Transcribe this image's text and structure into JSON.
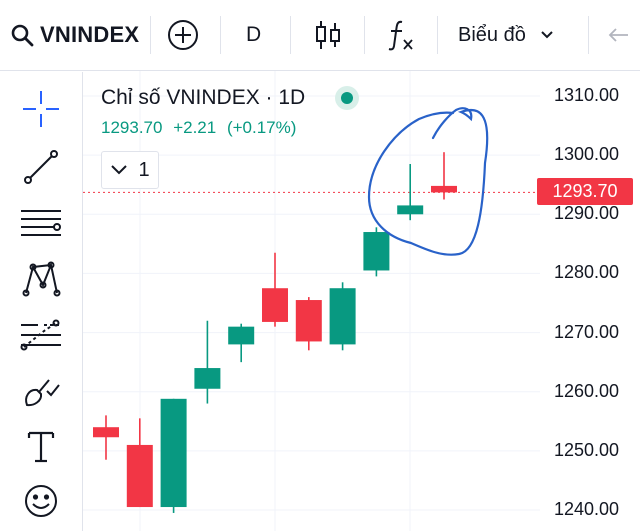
{
  "toolbar": {
    "symbol": "VNINDEX",
    "interval": "D",
    "chart_type_label": "Biểu đồ",
    "icons": [
      "search-icon",
      "plus-circle-icon",
      "candles-icon",
      "fx-icon",
      "chevron-down-icon",
      "undo-icon"
    ]
  },
  "drawing_tools": [
    "crosshair-icon",
    "trend-line-icon",
    "horizontal-lines-icon",
    "pattern-icon",
    "forecast-icon",
    "brush-icon",
    "text-icon",
    "emoji-icon"
  ],
  "legend": {
    "title": "Chỉ số VNINDEX · 1D",
    "price": "1293.70",
    "change": "+2.21",
    "change_pct": "(+0.17%)",
    "status_color": "#089981"
  },
  "collapse_toggle": {
    "count": "1"
  },
  "price_scale": {
    "ticks": [
      "1310.00",
      "1300.00",
      "1290.00",
      "1280.00",
      "1270.00",
      "1260.00",
      "1250.00",
      "1240.00"
    ],
    "last_price": "1293.70"
  },
  "colors": {
    "up": "#089981",
    "down": "#f23645",
    "annotation": "#2962c9"
  },
  "chart_data": {
    "type": "candlestick",
    "ylim": [
      1240,
      1310
    ],
    "last_price": 1293.7,
    "candles": [
      {
        "open": 1254.0,
        "high": 1256.0,
        "low": 1248.5,
        "close": 1252.3
      },
      {
        "open": 1251.0,
        "high": 1255.5,
        "low": 1240.5,
        "close": 1240.5
      },
      {
        "open": 1240.5,
        "high": 1258.8,
        "low": 1239.5,
        "close": 1258.8
      },
      {
        "open": 1260.5,
        "high": 1272.0,
        "low": 1258.0,
        "close": 1264.0
      },
      {
        "open": 1268.0,
        "high": 1271.5,
        "low": 1265.0,
        "close": 1271.0
      },
      {
        "open": 1277.5,
        "high": 1283.5,
        "low": 1271.0,
        "close": 1271.8
      },
      {
        "open": 1275.5,
        "high": 1276.0,
        "low": 1267.0,
        "close": 1268.5
      },
      {
        "open": 1268.0,
        "high": 1278.5,
        "low": 1267.0,
        "close": 1277.5
      },
      {
        "open": 1280.5,
        "high": 1287.8,
        "low": 1279.5,
        "close": 1287.0
      },
      {
        "open": 1290.0,
        "high": 1298.5,
        "low": 1289.0,
        "close": 1291.5
      },
      {
        "open": 1294.8,
        "high": 1300.5,
        "low": 1292.5,
        "close": 1293.7
      }
    ]
  }
}
